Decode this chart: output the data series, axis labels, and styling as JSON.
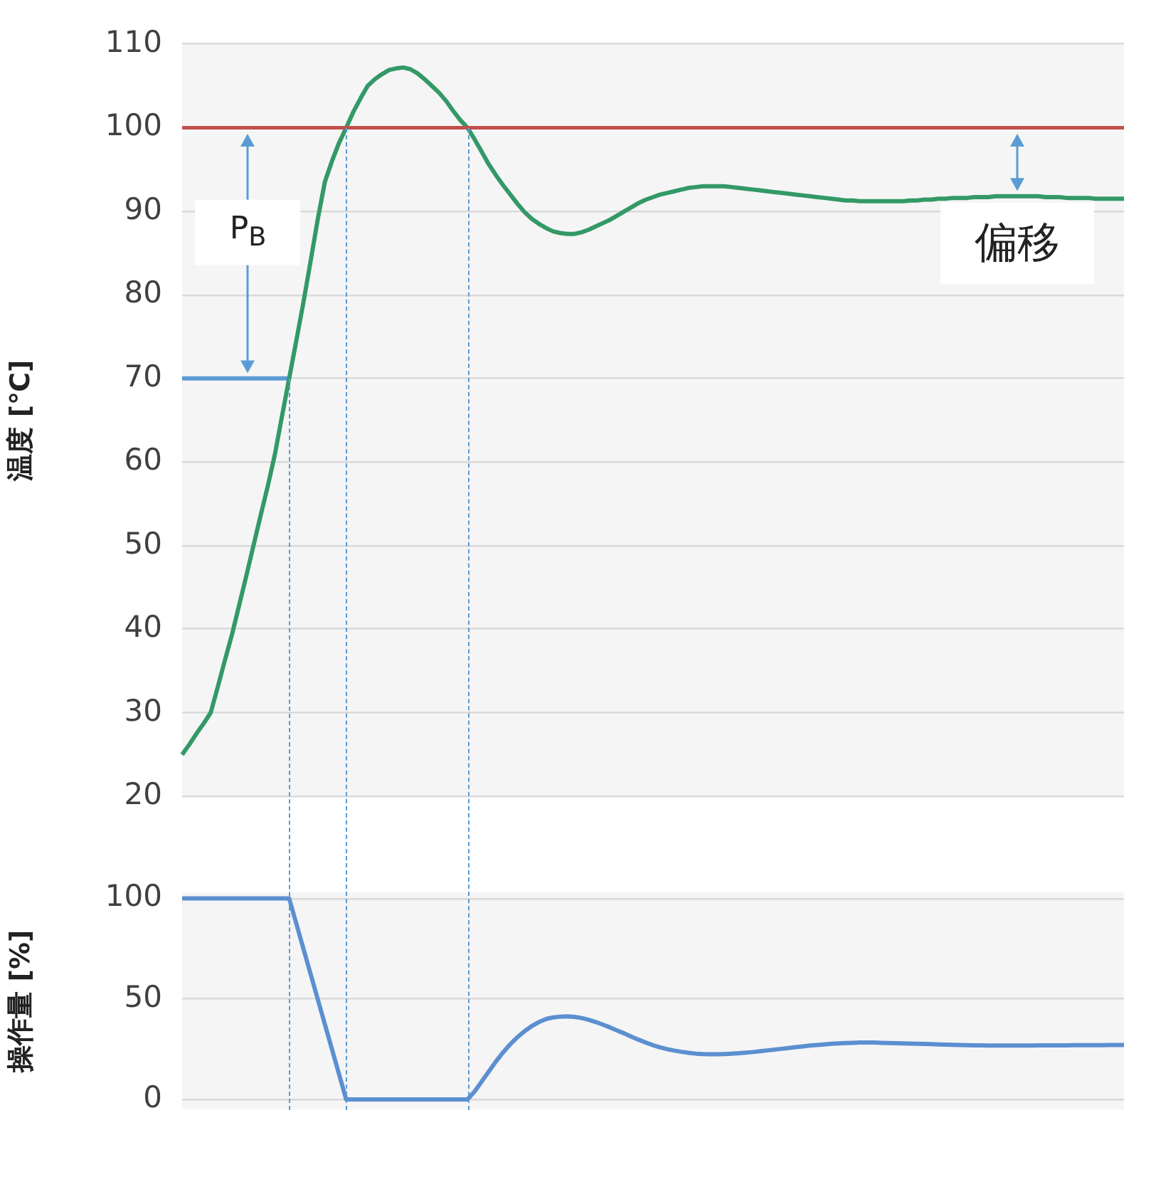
{
  "chart_data": [
    {
      "type": "line",
      "ylabel": "温度 [℃]",
      "categories": [
        null,
        null,
        null,
        null,
        null,
        null,
        null,
        null,
        null,
        null,
        null,
        null,
        null,
        null,
        null,
        null,
        null,
        null,
        null,
        null,
        null,
        null,
        null,
        null,
        null,
        null,
        null,
        null,
        null,
        null,
        null,
        null,
        null,
        null,
        null,
        null,
        null,
        null,
        null,
        null,
        null,
        null,
        null,
        null,
        null,
        null,
        null,
        null,
        null,
        null,
        null,
        null,
        null,
        null,
        null,
        null,
        null,
        null,
        null,
        null,
        null,
        null,
        null,
        null,
        null,
        null,
        null,
        null,
        null,
        null,
        null,
        null,
        null,
        null,
        null,
        null,
        null,
        null,
        null,
        null,
        null,
        null,
        null,
        null,
        null,
        null,
        null,
        null,
        null,
        null,
        null,
        null,
        null,
        null,
        null,
        null,
        null,
        null,
        null,
        null,
        null,
        null,
        null,
        null,
        null,
        null,
        null,
        null,
        null,
        null,
        null,
        null,
        null,
        null,
        null,
        null,
        null,
        null,
        null,
        null,
        null,
        null,
        null,
        null,
        null,
        null,
        null,
        null,
        null,
        null,
        null,
        null,
        null
      ],
      "ylim": [
        20,
        110
      ],
      "yticks": [
        20,
        30,
        40,
        50,
        60,
        70,
        80,
        90,
        100,
        110
      ],
      "grid": "y",
      "legend": false,
      "marker": "none",
      "series": [
        {
          "color": "#339966",
          "values": [
            25,
            26.2,
            27.5,
            28.7,
            30,
            33.1,
            36.3,
            39.4,
            42.9,
            46.4,
            50,
            53.6,
            57.1,
            60.9,
            65.5,
            70,
            74.5,
            79.1,
            84,
            89,
            93.5,
            96,
            98.2,
            100,
            101.9,
            103.5,
            105,
            105.8,
            106.4,
            106.9,
            107.1,
            107.2,
            107,
            106.5,
            105.8,
            105,
            104.2,
            103.2,
            102,
            100.9,
            100,
            98.6,
            97.1,
            95.6,
            94.3,
            93.1,
            92,
            90.9,
            89.9,
            89.1,
            88.5,
            88,
            87.6,
            87.4,
            87.3,
            87.3,
            87.5,
            87.8,
            88.2,
            88.6,
            89,
            89.5,
            90,
            90.5,
            91,
            91.4,
            91.7,
            92,
            92.2,
            92.4,
            92.6,
            92.8,
            92.9,
            93,
            93,
            93,
            93,
            92.9,
            92.8,
            92.7,
            92.6,
            92.5,
            92.4,
            92.3,
            92.2,
            92.1,
            92,
            91.9,
            91.8,
            91.7,
            91.6,
            91.5,
            91.4,
            91.3,
            91.3,
            91.2,
            91.2,
            91.2,
            91.2,
            91.2,
            91.2,
            91.2,
            91.3,
            91.3,
            91.4,
            91.4,
            91.5,
            91.5,
            91.6,
            91.6,
            91.6,
            91.7,
            91.7,
            91.7,
            91.8,
            91.8,
            91.8,
            91.8,
            91.8,
            91.8,
            91.8,
            91.7,
            91.7,
            91.7,
            91.6,
            91.6,
            91.6,
            91.6,
            91.5,
            91.5,
            91.5,
            91.5,
            91.5
          ]
        },
        {
          "color": "#5b9bd5",
          "values": [
            70,
            70,
            70,
            70,
            70,
            70,
            70,
            70,
            70,
            70,
            70,
            70,
            70,
            70,
            70,
            70,
            null,
            null,
            null,
            null,
            null,
            null,
            null,
            null,
            null,
            null,
            null,
            null,
            null,
            null,
            null,
            null,
            null,
            null,
            null,
            null,
            null,
            null,
            null,
            null,
            null,
            null,
            null,
            null,
            null,
            null,
            null,
            null,
            null,
            null,
            null,
            null,
            null,
            null,
            null,
            null,
            null,
            null,
            null,
            null,
            null,
            null,
            null,
            null,
            null,
            null,
            null,
            null,
            null,
            null,
            null,
            null,
            null,
            null,
            null,
            null,
            null,
            null,
            null,
            null,
            null,
            null,
            null,
            null,
            null,
            null,
            null,
            null,
            null,
            null,
            null,
            null,
            null,
            null,
            null,
            null,
            null,
            null,
            null,
            null,
            null,
            null,
            null,
            null,
            null,
            null,
            null,
            null,
            null,
            null,
            null,
            null,
            null,
            null,
            null,
            null,
            null,
            null,
            null,
            null,
            null,
            null,
            null,
            null,
            null,
            null,
            null,
            null,
            null,
            null,
            null,
            null,
            null
          ]
        }
      ],
      "ref_lines": [
        {
          "axis": "y",
          "value": 100,
          "color": "#c0504d"
        }
      ],
      "annotations": [
        "P$_{B}$",
        "偏移"
      ]
    },
    {
      "type": "line",
      "ylabel": "操作量 [%]",
      "categories": [
        null,
        null,
        null,
        null,
        null,
        null,
        null,
        null,
        null,
        null,
        null,
        null,
        null,
        null,
        null,
        null,
        null,
        null,
        null,
        null,
        null,
        null,
        null,
        null,
        null,
        null,
        null,
        null,
        null,
        null,
        null,
        null,
        null,
        null,
        null,
        null,
        null,
        null,
        null,
        null,
        null,
        null,
        null,
        null,
        null,
        null,
        null,
        null,
        null,
        null,
        null,
        null,
        null,
        null,
        null,
        null,
        null,
        null,
        null,
        null,
        null,
        null,
        null,
        null,
        null,
        null,
        null,
        null,
        null,
        null,
        null,
        null,
        null,
        null,
        null,
        null,
        null,
        null,
        null,
        null,
        null,
        null,
        null,
        null,
        null,
        null,
        null,
        null,
        null,
        null,
        null,
        null,
        null,
        null,
        null,
        null,
        null,
        null,
        null,
        null,
        null,
        null,
        null,
        null,
        null,
        null,
        null,
        null,
        null,
        null,
        null,
        null,
        null,
        null,
        null,
        null,
        null,
        null,
        null,
        null,
        null,
        null,
        null,
        null,
        null,
        null,
        null,
        null,
        null,
        null,
        null,
        null,
        null
      ],
      "ylim": [
        -5,
        103
      ],
      "yticks": [
        0,
        50,
        100
      ],
      "grid": "y",
      "legend": false,
      "marker": "none",
      "series": [
        {
          "color": "#5b8fd0",
          "values": [
            100,
            100,
            100,
            100,
            100,
            100,
            100,
            100,
            100,
            100,
            100,
            100,
            100,
            100,
            100,
            100,
            87.5,
            75,
            62.5,
            50,
            37.5,
            25,
            12.5,
            0,
            0,
            0,
            0,
            0,
            0,
            0,
            0,
            0,
            0,
            0,
            0,
            0,
            0,
            0,
            0,
            0,
            0,
            4,
            9,
            14,
            19,
            23.5,
            27.5,
            31,
            34,
            36.5,
            38.5,
            40,
            40.8,
            41.2,
            41.3,
            41.1,
            40.5,
            39.6,
            38.5,
            37.2,
            35.8,
            34.3,
            32.8,
            31.2,
            29.7,
            28.3,
            27,
            25.9,
            25,
            24.3,
            23.7,
            23.2,
            22.8,
            22.6,
            22.5,
            22.5,
            22.6,
            22.8,
            23,
            23.3,
            23.6,
            24,
            24.4,
            24.8,
            25.2,
            25.6,
            26,
            26.4,
            26.8,
            27.1,
            27.4,
            27.7,
            27.9,
            28.1,
            28.2,
            28.3,
            28.3,
            28.3,
            28.2,
            28.1,
            28,
            27.9,
            27.8,
            27.7,
            27.6,
            27.5,
            27.4,
            27.3,
            27.2,
            27.1,
            27,
            26.9,
            26.9,
            26.8,
            26.8,
            26.8,
            26.8,
            26.8,
            26.8,
            26.8,
            26.9,
            26.9,
            26.9,
            26.9,
            26.9,
            27,
            27,
            27,
            27,
            27,
            27.1,
            27.1,
            27.1
          ]
        }
      ]
    }
  ]
}
